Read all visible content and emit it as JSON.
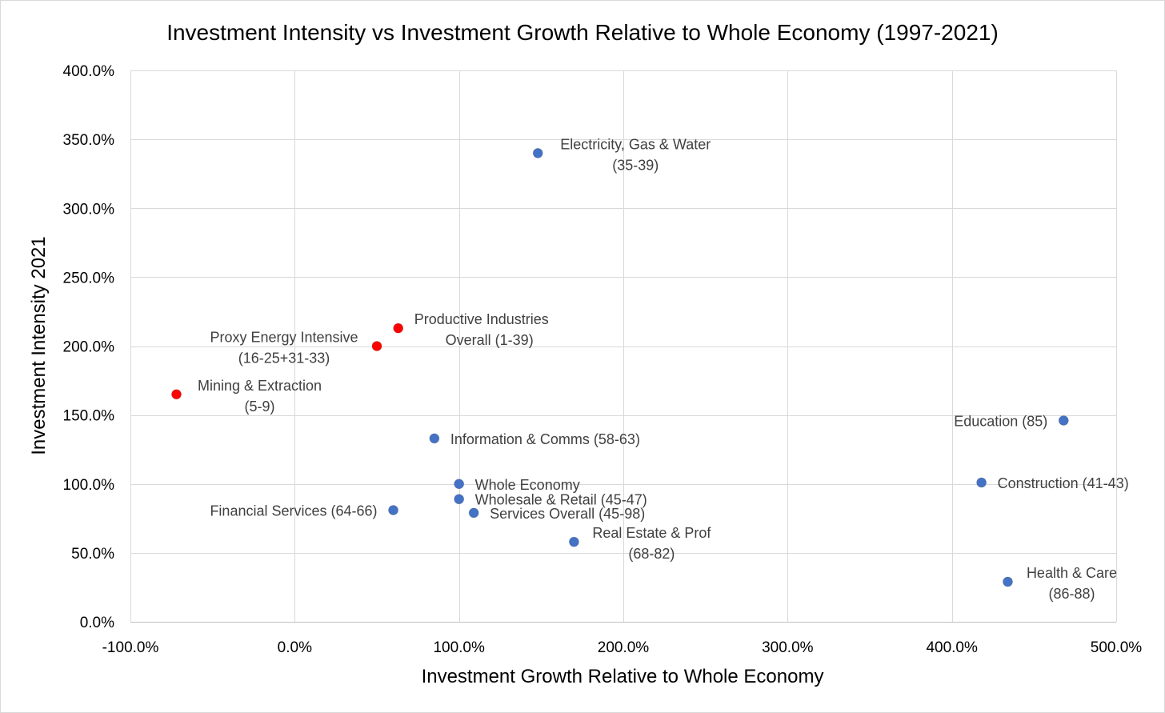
{
  "chart_data": {
    "type": "scatter",
    "title": "Investment Intensity vs Investment Growth Relative to Whole Economy (1997-2021)",
    "xlabel": "Investment Growth Relative to Whole Economy",
    "ylabel": "Investment Intensity 2021",
    "xlim": [
      -100,
      500
    ],
    "ylim": [
      0,
      400
    ],
    "x_ticks": [
      -100,
      0,
      100,
      200,
      300,
      400,
      500
    ],
    "y_ticks": [
      0,
      50,
      100,
      150,
      200,
      250,
      300,
      350,
      400
    ],
    "x_tick_labels": [
      "-100.0%",
      "0.0%",
      "100.0%",
      "200.0%",
      "300.0%",
      "400.0%",
      "500.0%"
    ],
    "y_tick_labels": [
      "0.0%",
      "50.0%",
      "100.0%",
      "150.0%",
      "200.0%",
      "250.0%",
      "300.0%",
      "350.0%",
      "400.0%"
    ],
    "grid": true,
    "colors": {
      "blue": "#4472c4",
      "red": "#ff0000"
    },
    "points": [
      {
        "name": "Electricity, Gas & Water",
        "lines": [
          "Electricity, Gas & Water",
          "(35-39)"
        ],
        "x": 148,
        "y": 340,
        "color": "blue",
        "label_pos": "right"
      },
      {
        "name": "Productive Industries Overall",
        "lines": [
          "Productive Industries",
          "Overall (1-39)"
        ],
        "x": 63,
        "y": 213,
        "color": "red",
        "label_pos": "right"
      },
      {
        "name": "Proxy Energy Intensive",
        "lines": [
          "Proxy Energy Intensive",
          "(16-25+31-33)"
        ],
        "x": 50,
        "y": 200,
        "color": "red",
        "label_pos": "left"
      },
      {
        "name": "Mining & Extraction",
        "lines": [
          "Mining & Extraction",
          "(5-9)"
        ],
        "x": -72,
        "y": 165,
        "color": "red",
        "label_pos": "right"
      },
      {
        "name": "Information & Comms",
        "lines": [
          "Information & Comms (58-63)"
        ],
        "x": 85,
        "y": 133,
        "color": "blue",
        "label_pos": "right"
      },
      {
        "name": "Whole Economy",
        "lines": [
          "Whole Economy"
        ],
        "x": 100,
        "y": 100,
        "color": "blue",
        "label_pos": "right"
      },
      {
        "name": "Wholesale & Retail",
        "lines": [
          "Wholesale & Retail (45-47)"
        ],
        "x": 100,
        "y": 89,
        "color": "blue",
        "label_pos": "right"
      },
      {
        "name": "Services Overall",
        "lines": [
          "Services Overall (45-98)"
        ],
        "x": 109,
        "y": 79,
        "color": "blue",
        "label_pos": "right"
      },
      {
        "name": "Financial Services",
        "lines": [
          "Financial Services (64-66)"
        ],
        "x": 60,
        "y": 81,
        "color": "blue",
        "label_pos": "left"
      },
      {
        "name": "Real Estate & Prof",
        "lines": [
          "Real Estate & Prof",
          "(68-82)"
        ],
        "x": 170,
        "y": 58,
        "color": "blue",
        "label_pos": "right"
      },
      {
        "name": "Education",
        "lines": [
          "Education (85)"
        ],
        "x": 468,
        "y": 146,
        "color": "blue",
        "label_pos": "left"
      },
      {
        "name": "Construction",
        "lines": [
          "Construction (41-43)"
        ],
        "x": 418,
        "y": 101,
        "color": "blue",
        "label_pos": "right"
      },
      {
        "name": "Health & Care",
        "lines": [
          "Health & Care",
          "(86-88)"
        ],
        "x": 434,
        "y": 29,
        "color": "blue",
        "label_pos": "right"
      }
    ]
  }
}
